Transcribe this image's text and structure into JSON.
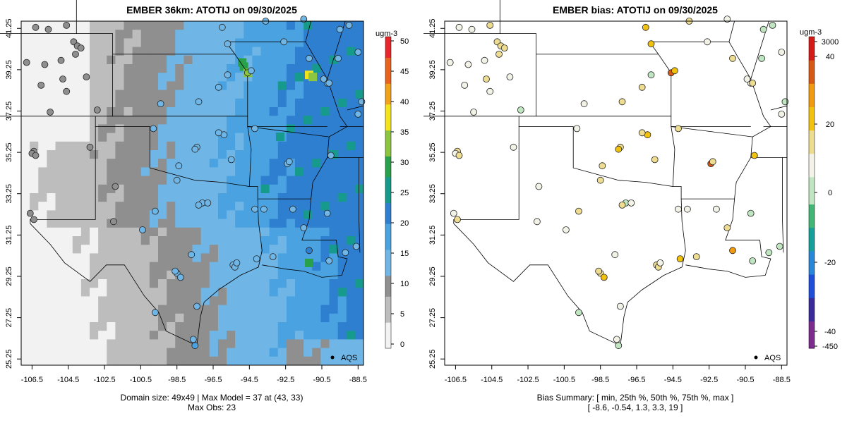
{
  "left": {
    "title": "EMBER 36km: ATOTIJ on 09/30/2025",
    "colorbar_unit": "ugm-3",
    "colorbar_ticks": [
      "50",
      "45",
      "40",
      "35",
      "30",
      "25",
      "20",
      "15",
      "10",
      "5",
      "0"
    ],
    "caption_line1": "Domain size: 49x49 | Max Model = 37 at (43, 33)",
    "caption_line2": "Max Obs: 23",
    "legend_label": "AQS"
  },
  "right": {
    "title": "EMBER bias: ATOTIJ on 09/30/2025",
    "colorbar_unit": "ugm-3",
    "colorbar_ticks": [
      "3000",
      "40",
      "20",
      "0",
      "-20",
      "-40",
      "-450"
    ],
    "caption_line1": "Bias Summary: [ min, 25th %, 50th %, 75th %, max ]",
    "caption_line2": "[ -8.6,  -0.54,  1.3,  3.3,  19 ]",
    "legend_label": "AQS"
  },
  "axes": {
    "lat_ticks": [
      "41.25",
      "39.25",
      "37.25",
      "35.25",
      "33.25",
      "31.25",
      "29.25",
      "27.25",
      "25.25"
    ],
    "lon_ticks": [
      "-106.5",
      "-104.5",
      "-102.5",
      "-100.5",
      "-98.5",
      "-96.5",
      "-94.5",
      "-92.5",
      "-90.5",
      "-88.5"
    ]
  },
  "colors": {
    "model_scale": [
      "#f2f2f2",
      "#bdbdbd",
      "#8f8f8f",
      "#6fb6e6",
      "#4aa3e0",
      "#2f7fd0",
      "#169a8c",
      "#29a14a",
      "#8cc63f",
      "#f2e31a",
      "#f2a21a",
      "#e8641e",
      "#e8262b"
    ],
    "bias_scale": [
      "#7b2c8c",
      "#3a2a9a",
      "#1f4fd9",
      "#2a86d8",
      "#17a09a",
      "#43b574",
      "#bfe6c0",
      "#f2f2e6",
      "#eedd90",
      "#f0c20f",
      "#f09a0f",
      "#d65a16",
      "#d31a16"
    ]
  }
}
